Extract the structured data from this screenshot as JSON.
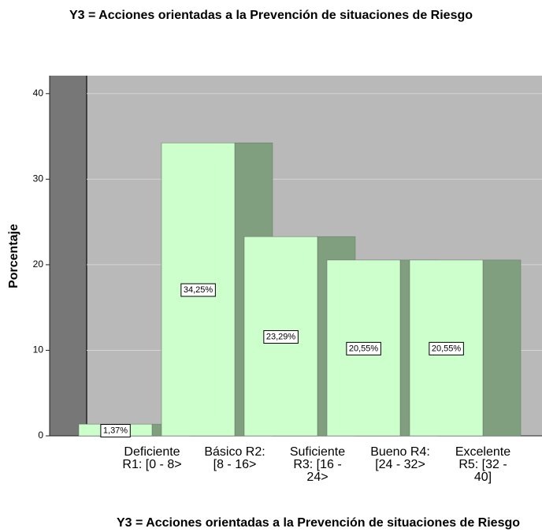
{
  "chart_data": {
    "type": "bar",
    "title": "Y3 = Acciones orientadas a la Prevención de situaciones de Riesgo",
    "x_label": "Y3 = Acciones orientadas a la Prevención de situaciones de Riesgo",
    "y_label": "Porcentaje",
    "categories": [
      "Deficiente R1: [0 - 8>",
      "Básico R2: [8 - 16>",
      "Suficiente R3: [16 - 24>",
      "Bueno R4: [24 - 32>",
      "Excelente R5: [32 - 40]"
    ],
    "values": [
      1.37,
      34.25,
      23.29,
      20.55,
      20.55
    ],
    "value_labels": [
      "1,37%",
      "34,25%",
      "23,29%",
      "20,55%",
      "20,55%"
    ],
    "color": "#ccffcc",
    "side_color": "#7f9f7f",
    "ylim": [
      0,
      42.1
    ],
    "yticks": [
      0,
      10,
      20,
      30,
      40
    ],
    "grid": true
  }
}
